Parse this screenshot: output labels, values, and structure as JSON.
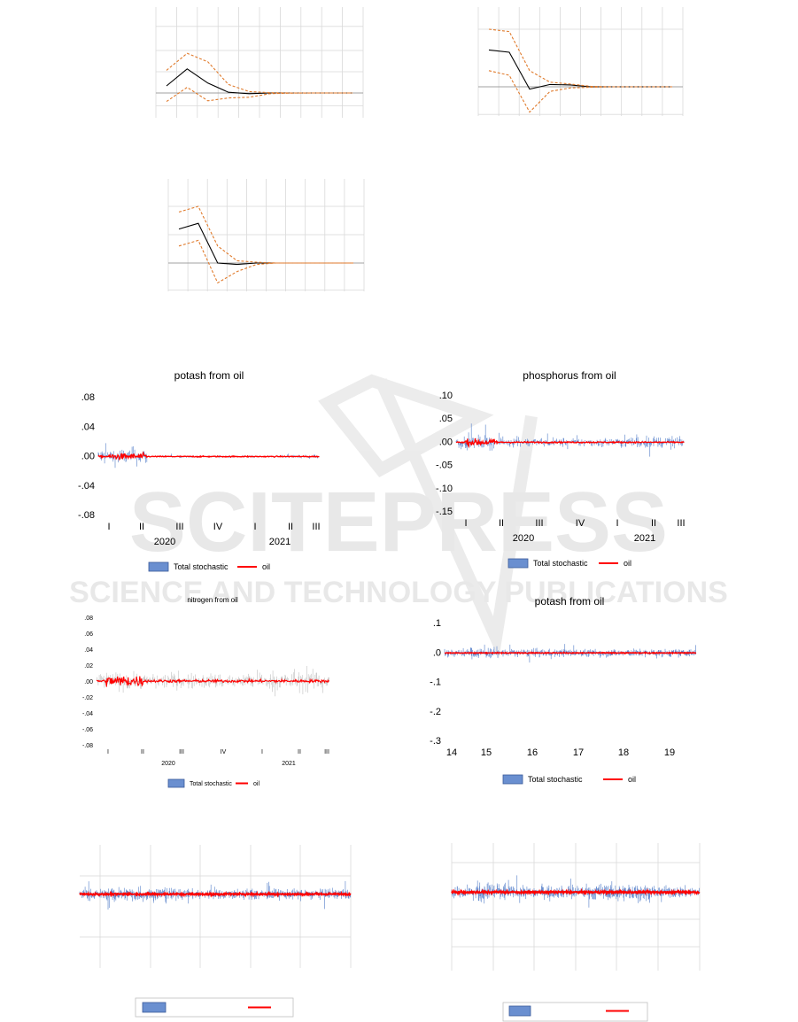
{
  "watermark": {
    "line1": "SCITEPRESS",
    "line2": "SCIENCE AND TECHNOLOGY PUBLICATIONS"
  },
  "colors": {
    "irf_mean": "#000000",
    "irf_band": "#e07a2b",
    "stochastic": "#6a8fd0",
    "stochastic_gray": "#c8c8c8",
    "oil": "#ff0000",
    "grid": "#d9d9d9"
  },
  "chart_data": [
    {
      "type": "line",
      "panel": "irf-top-left",
      "x": [
        1,
        2,
        3,
        4,
        5,
        6,
        7,
        8,
        9,
        10
      ],
      "series": [
        {
          "values": [
            0.5,
            1.7,
            0.7,
            0.05,
            -0.05,
            0.0,
            0.0,
            0.0,
            0.0,
            0.0
          ]
        },
        {
          "values": [
            1.6,
            2.8,
            2.2,
            0.6,
            0.1,
            0.02,
            0.0,
            0.0,
            0.0,
            0.0
          ]
        },
        {
          "values": [
            -0.6,
            0.4,
            -0.55,
            -0.35,
            -0.3,
            -0.05,
            -0.01,
            0.0,
            0.0,
            0.0
          ]
        }
      ]
    },
    {
      "type": "line",
      "panel": "irf-top-right",
      "x": [
        1,
        2,
        3,
        4,
        5,
        6,
        7,
        8,
        9,
        10
      ],
      "series": [
        {
          "values": [
            1.6,
            1.5,
            -0.1,
            0.1,
            0.08,
            0.0,
            0.0,
            0.0,
            0.0,
            0.0
          ]
        },
        {
          "values": [
            2.5,
            2.4,
            0.7,
            0.2,
            0.12,
            0.02,
            0.0,
            0.0,
            0.0,
            0.0
          ]
        },
        {
          "values": [
            0.7,
            0.5,
            -1.1,
            -0.2,
            -0.05,
            -0.02,
            0.0,
            0.0,
            0.0,
            0.0
          ]
        }
      ]
    },
    {
      "type": "line",
      "panel": "irf-middle",
      "x": [
        1,
        2,
        3,
        4,
        5,
        6,
        7,
        8,
        9,
        10
      ],
      "series": [
        {
          "values": [
            1.2,
            1.4,
            0.0,
            -0.05,
            0.0,
            0.0,
            0.0,
            0.0,
            0.0,
            0.0
          ]
        },
        {
          "values": [
            1.8,
            2.0,
            0.6,
            0.08,
            0.03,
            0.0,
            0.0,
            0.0,
            0.0,
            0.0
          ]
        },
        {
          "values": [
            0.6,
            0.8,
            -0.7,
            -0.3,
            -0.05,
            0.0,
            0.0,
            0.0,
            0.0,
            0.0
          ]
        }
      ]
    },
    {
      "type": "bar",
      "panel": "potash-2020",
      "title": "potash from oil",
      "yticks": [
        ".08",
        ".04",
        ".00",
        "-.04",
        "-.08"
      ],
      "ylim": [
        -0.08,
        0.08
      ],
      "xticks": [
        "I",
        "II",
        "III",
        "IV",
        "I",
        "II",
        "III"
      ],
      "years": [
        "2020",
        "2021"
      ],
      "legend": [
        "Total stochastic",
        "oil"
      ],
      "n": 420
    },
    {
      "type": "bar",
      "panel": "phosphorus-2020",
      "title": "phosphorus from oil",
      "yticks": [
        ".10",
        ".05",
        ".00",
        "-.05",
        "-.10",
        "-.15"
      ],
      "ylim": [
        -0.15,
        0.1
      ],
      "xticks": [
        "I",
        "II",
        "III",
        "IV",
        "I",
        "II",
        "III"
      ],
      "years": [
        "2020",
        "2021"
      ],
      "legend": [
        "Total stochastic",
        "oil"
      ],
      "n": 420
    },
    {
      "type": "bar",
      "panel": "nitrogen-2020",
      "title": "nitrogen from oil",
      "yticks": [
        ".08",
        ".06",
        ".04",
        ".02",
        ".00",
        "-.02",
        "-.04",
        "-.06",
        "-.08"
      ],
      "ylim": [
        -0.08,
        0.08
      ],
      "xticks": [
        "I",
        "II",
        "III",
        "IV",
        "I",
        "II",
        "III"
      ],
      "years": [
        "2020",
        "2021"
      ],
      "legend": [
        "Total stochastic",
        "oil"
      ],
      "n": 420
    },
    {
      "type": "bar",
      "panel": "potash-2014",
      "title": "potash from oil",
      "yticks": [
        ".1",
        ".0",
        "-.1",
        "-.2",
        "-.3"
      ],
      "ylim": [
        -0.3,
        0.1
      ],
      "xticks": [
        "14",
        "15",
        "16",
        "17",
        "18",
        "19"
      ],
      "legend": [
        "Total stochastic",
        "oil"
      ],
      "n": 900
    },
    {
      "type": "bar",
      "panel": "bottom-left",
      "n": 900
    },
    {
      "type": "bar",
      "panel": "bottom-right",
      "n": 900
    }
  ]
}
